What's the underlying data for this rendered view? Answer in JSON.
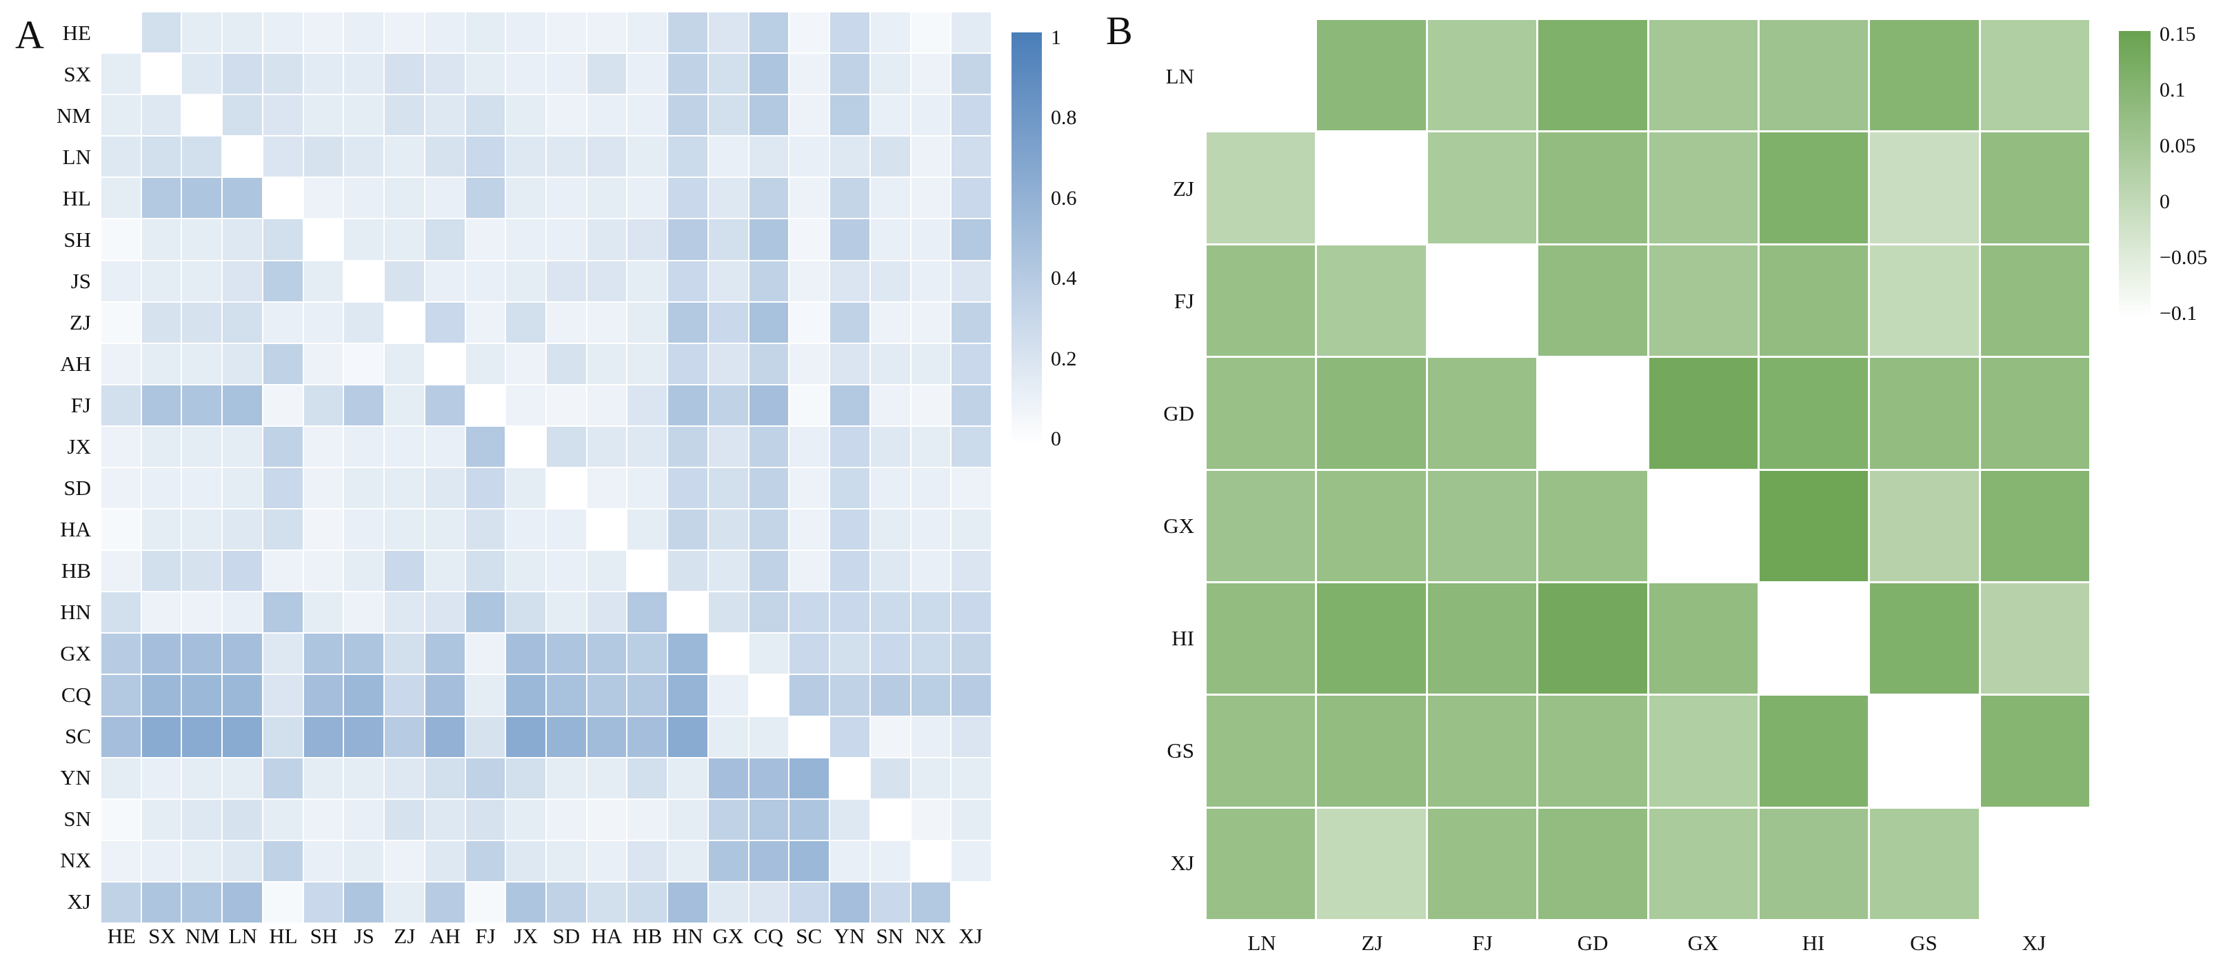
{
  "figure": {
    "background": "#ffffff",
    "text_color": "#111111"
  },
  "chart_data": [
    {
      "type": "heatmap",
      "panel_label": "A",
      "categories_y": [
        "HE",
        "SX",
        "NM",
        "LN",
        "HL",
        "SH",
        "JS",
        "ZJ",
        "AH",
        "FJ",
        "JX",
        "SD",
        "HA",
        "HB",
        "HN",
        "GX",
        "CQ",
        "SC",
        "YN",
        "SN",
        "NX",
        "XJ"
      ],
      "categories_x": [
        "HE",
        "SX",
        "NM",
        "LN",
        "HL",
        "SH",
        "JS",
        "ZJ",
        "AH",
        "FJ",
        "JX",
        "SD",
        "HA",
        "HB",
        "HN",
        "GX",
        "CQ",
        "SC",
        "YN",
        "SN",
        "NX",
        "XJ"
      ],
      "values": [
        [
          null,
          0.25,
          0.15,
          0.15,
          0.12,
          0.1,
          0.12,
          0.1,
          0.12,
          0.15,
          0.12,
          0.1,
          0.1,
          0.12,
          0.32,
          0.2,
          0.38,
          0.07,
          0.3,
          0.12,
          0.05,
          0.16
        ],
        [
          0.15,
          null,
          0.18,
          0.26,
          0.22,
          0.16,
          0.16,
          0.24,
          0.2,
          0.15,
          0.12,
          0.12,
          0.22,
          0.12,
          0.35,
          0.25,
          0.45,
          0.1,
          0.35,
          0.15,
          0.1,
          0.32
        ],
        [
          0.15,
          0.18,
          null,
          0.25,
          0.2,
          0.15,
          0.15,
          0.22,
          0.18,
          0.25,
          0.15,
          0.1,
          0.12,
          0.12,
          0.35,
          0.25,
          0.42,
          0.1,
          0.38,
          0.12,
          0.12,
          0.3
        ],
        [
          0.18,
          0.25,
          0.25,
          null,
          0.2,
          0.22,
          0.18,
          0.15,
          0.22,
          0.3,
          0.18,
          0.18,
          0.2,
          0.15,
          0.28,
          0.12,
          0.18,
          0.12,
          0.18,
          0.22,
          0.1,
          0.26
        ],
        [
          0.15,
          0.42,
          0.45,
          0.45,
          null,
          0.1,
          0.12,
          0.15,
          0.12,
          0.35,
          0.15,
          0.12,
          0.15,
          0.12,
          0.3,
          0.18,
          0.35,
          0.1,
          0.32,
          0.12,
          0.1,
          0.3
        ],
        [
          0.05,
          0.15,
          0.15,
          0.18,
          0.25,
          null,
          0.15,
          0.15,
          0.25,
          0.1,
          0.12,
          0.12,
          0.18,
          0.2,
          0.4,
          0.25,
          0.45,
          0.07,
          0.4,
          0.12,
          0.12,
          0.42
        ],
        [
          0.12,
          0.15,
          0.15,
          0.2,
          0.38,
          0.15,
          null,
          0.22,
          0.12,
          0.12,
          0.15,
          0.2,
          0.2,
          0.15,
          0.3,
          0.18,
          0.35,
          0.1,
          0.2,
          0.18,
          0.12,
          0.2
        ],
        [
          0.05,
          0.22,
          0.22,
          0.25,
          0.12,
          0.12,
          0.18,
          null,
          0.3,
          0.1,
          0.25,
          0.1,
          0.1,
          0.15,
          0.42,
          0.3,
          0.48,
          0.06,
          0.35,
          0.1,
          0.1,
          0.35
        ],
        [
          0.1,
          0.15,
          0.15,
          0.18,
          0.35,
          0.1,
          0.06,
          0.15,
          null,
          0.15,
          0.1,
          0.22,
          0.15,
          0.15,
          0.3,
          0.2,
          0.32,
          0.1,
          0.2,
          0.16,
          0.15,
          0.3
        ],
        [
          0.25,
          0.45,
          0.45,
          0.48,
          0.08,
          0.25,
          0.4,
          0.15,
          0.4,
          null,
          0.1,
          0.08,
          0.1,
          0.2,
          0.45,
          0.35,
          0.5,
          0.05,
          0.42,
          0.1,
          0.08,
          0.35
        ],
        [
          0.1,
          0.15,
          0.15,
          0.15,
          0.35,
          0.1,
          0.12,
          0.12,
          0.12,
          0.42,
          null,
          0.25,
          0.18,
          0.18,
          0.32,
          0.2,
          0.35,
          0.12,
          0.3,
          0.18,
          0.15,
          0.28
        ],
        [
          0.1,
          0.12,
          0.12,
          0.15,
          0.3,
          0.1,
          0.15,
          0.15,
          0.18,
          0.3,
          0.15,
          null,
          0.1,
          0.12,
          0.3,
          0.25,
          0.35,
          0.1,
          0.28,
          0.12,
          0.12,
          0.1
        ],
        [
          0.05,
          0.15,
          0.15,
          0.18,
          0.25,
          0.08,
          0.12,
          0.15,
          0.15,
          0.22,
          0.12,
          0.12,
          null,
          0.15,
          0.32,
          0.22,
          0.32,
          0.1,
          0.3,
          0.15,
          0.12,
          0.15
        ],
        [
          0.1,
          0.25,
          0.22,
          0.3,
          0.1,
          0.1,
          0.15,
          0.3,
          0.15,
          0.25,
          0.15,
          0.12,
          0.15,
          null,
          0.22,
          0.18,
          0.35,
          0.1,
          0.3,
          0.18,
          0.12,
          0.2
        ],
        [
          0.25,
          0.1,
          0.1,
          0.12,
          0.42,
          0.15,
          0.1,
          0.18,
          0.2,
          0.45,
          0.25,
          0.15,
          0.2,
          0.42,
          null,
          0.22,
          0.32,
          0.3,
          0.3,
          0.28,
          0.28,
          0.3
        ],
        [
          0.4,
          0.5,
          0.5,
          0.5,
          0.18,
          0.45,
          0.45,
          0.25,
          0.45,
          0.1,
          0.5,
          0.45,
          0.42,
          0.38,
          0.55,
          null,
          0.15,
          0.3,
          0.25,
          0.3,
          0.28,
          0.32
        ],
        [
          0.42,
          0.55,
          0.55,
          0.55,
          0.2,
          0.5,
          0.55,
          0.3,
          0.5,
          0.15,
          0.55,
          0.48,
          0.42,
          0.42,
          0.58,
          0.12,
          null,
          0.4,
          0.35,
          0.4,
          0.38,
          0.4
        ],
        [
          0.5,
          0.65,
          0.65,
          0.65,
          0.25,
          0.6,
          0.6,
          0.4,
          0.6,
          0.22,
          0.65,
          0.58,
          0.52,
          0.5,
          0.65,
          0.15,
          0.15,
          null,
          0.3,
          0.08,
          0.12,
          0.2
        ],
        [
          0.15,
          0.12,
          0.15,
          0.15,
          0.35,
          0.15,
          0.15,
          0.18,
          0.25,
          0.35,
          0.25,
          0.15,
          0.15,
          0.25,
          0.15,
          0.5,
          0.5,
          0.58,
          null,
          0.22,
          0.15,
          0.15
        ],
        [
          0.05,
          0.15,
          0.18,
          0.22,
          0.15,
          0.1,
          0.12,
          0.22,
          0.18,
          0.22,
          0.15,
          0.1,
          0.08,
          0.1,
          0.15,
          0.35,
          0.42,
          0.45,
          0.18,
          null,
          0.08,
          0.15
        ],
        [
          0.1,
          0.12,
          0.15,
          0.18,
          0.35,
          0.12,
          0.15,
          0.1,
          0.18,
          0.35,
          0.18,
          0.15,
          0.12,
          0.2,
          0.15,
          0.45,
          0.5,
          0.55,
          0.12,
          0.12,
          null,
          0.12
        ],
        [
          0.35,
          0.45,
          0.45,
          0.5,
          0.05,
          0.3,
          0.45,
          0.15,
          0.4,
          0.05,
          0.45,
          0.35,
          0.25,
          0.28,
          0.5,
          0.18,
          0.2,
          0.3,
          0.5,
          0.3,
          0.42,
          null
        ]
      ],
      "vmin": 0,
      "vmax": 1,
      "color_high": "#4a7db8",
      "color_low": "#ffffff",
      "null_color": "#ffffff",
      "colorbar_ticks": [
        "1",
        "0.8",
        "0.6",
        "0.4",
        "0.2",
        "0"
      ],
      "legend_position": "right",
      "grid_lines": "white"
    },
    {
      "type": "heatmap",
      "panel_label": "B",
      "categories_y": [
        "LN",
        "ZJ",
        "FJ",
        "GD",
        "GX",
        "HI",
        "GS",
        "XJ"
      ],
      "categories_x": [
        "LN",
        "ZJ",
        "FJ",
        "GD",
        "GX",
        "HI",
        "GS",
        "XJ"
      ],
      "values": [
        [
          null,
          0.09,
          0.04,
          0.11,
          0.05,
          0.06,
          0.1,
          0.03
        ],
        [
          0.01,
          null,
          0.04,
          0.08,
          0.05,
          0.11,
          -0.01,
          0.08
        ],
        [
          0.07,
          0.04,
          null,
          0.08,
          0.05,
          0.08,
          0.0,
          0.08
        ],
        [
          0.07,
          0.09,
          0.07,
          null,
          0.13,
          0.11,
          0.08,
          0.08
        ],
        [
          0.06,
          0.07,
          0.06,
          0.07,
          null,
          0.14,
          0.02,
          0.1
        ],
        [
          0.08,
          0.11,
          0.09,
          0.13,
          0.08,
          null,
          0.11,
          0.02
        ],
        [
          0.07,
          0.08,
          0.07,
          0.07,
          0.03,
          0.11,
          null,
          0.1
        ],
        [
          0.07,
          0.0,
          0.07,
          0.08,
          0.04,
          0.06,
          0.04,
          null
        ]
      ],
      "vmin": -0.1,
      "vmax": 0.15,
      "color_high": "#68a24f",
      "color_low": "#ffffff",
      "null_color": "#ffffff",
      "colorbar_ticks": [
        "0.15",
        "0.1",
        "0.05",
        "0",
        "−0.05",
        "−0.1"
      ],
      "legend_position": "right",
      "grid_lines": "white"
    }
  ]
}
